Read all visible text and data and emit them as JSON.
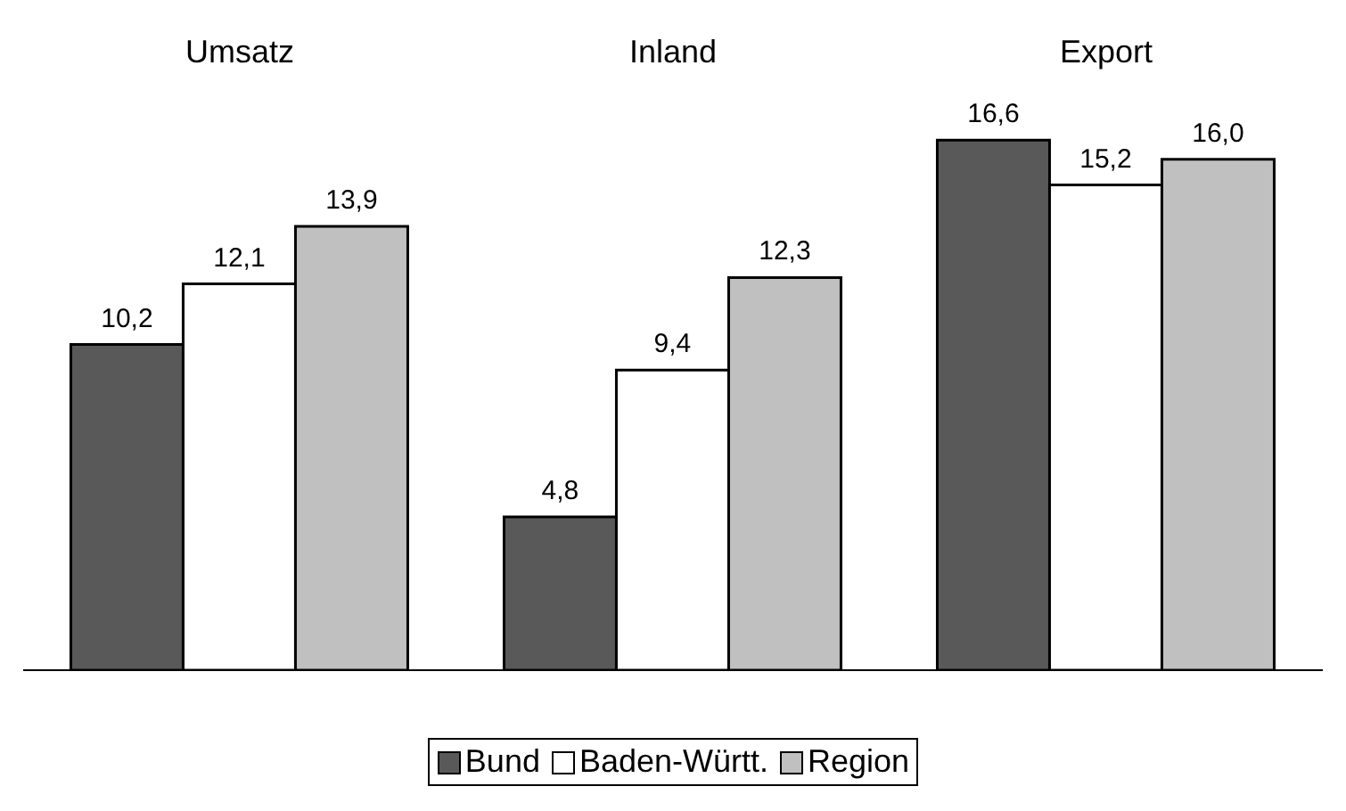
{
  "chart_data": {
    "type": "bar",
    "categories": [
      "Umsatz",
      "Inland",
      "Export"
    ],
    "series": [
      {
        "name": "Bund",
        "color": "#595959",
        "values": [
          10.2,
          4.8,
          16.6
        ],
        "value_labels": [
          "10,2",
          "4,8",
          "16,6"
        ]
      },
      {
        "name": "Baden-Württ.",
        "color": "#ffffff",
        "values": [
          12.1,
          9.4,
          15.2
        ],
        "value_labels": [
          "12,1",
          "9,4",
          "15,2"
        ]
      },
      {
        "name": "Region",
        "color": "#c0c0c0",
        "values": [
          13.9,
          12.3,
          16.0
        ],
        "value_labels": [
          "13,9",
          "12,3",
          "16,0"
        ]
      }
    ],
    "legend": "bottom"
  }
}
